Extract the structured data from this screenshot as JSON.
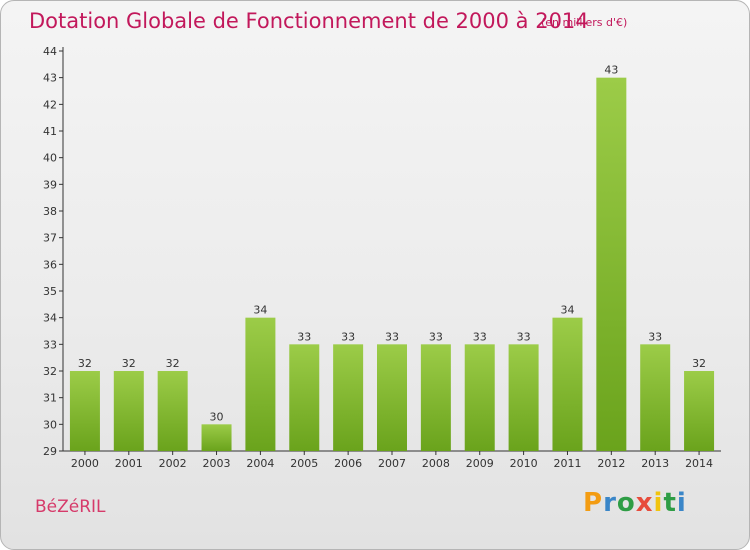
{
  "header": {
    "title": "Dotation Globale de Fonctionnement de 2000 à 2014",
    "subtitle": "(en milliers d'€)"
  },
  "footer": {
    "commune": "BéZéRIL",
    "logo_letters": [
      "P",
      "r",
      "o",
      "x",
      "i",
      "t",
      "i"
    ],
    "logo_colors": [
      "#f39c12",
      "#3a86c8",
      "#2e9d45",
      "#e74c3c",
      "#f1c40f",
      "#2e9d45",
      "#3a86c8"
    ]
  },
  "colors": {
    "bar_top": "#9ccc48",
    "bar_bottom": "#6aa31c",
    "title": "#c2185b",
    "axis": "#333333"
  },
  "chart_data": {
    "type": "bar",
    "title": "Dotation Globale de Fonctionnement de 2000 à 2014",
    "subtitle": "(en milliers d'€)",
    "categories": [
      "2000",
      "2001",
      "2002",
      "2003",
      "2004",
      "2005",
      "2006",
      "2007",
      "2008",
      "2009",
      "2010",
      "2011",
      "2012",
      "2013",
      "2014"
    ],
    "values": [
      32,
      32,
      32,
      30,
      34,
      33,
      33,
      33,
      33,
      33,
      33,
      34,
      43,
      33,
      32
    ],
    "ylim": [
      29,
      44
    ],
    "yticks": [
      29,
      30,
      31,
      32,
      33,
      34,
      35,
      36,
      37,
      38,
      39,
      40,
      41,
      42,
      43,
      44
    ],
    "xlabel": "",
    "ylabel": "",
    "grid": false,
    "data_labels": true
  }
}
